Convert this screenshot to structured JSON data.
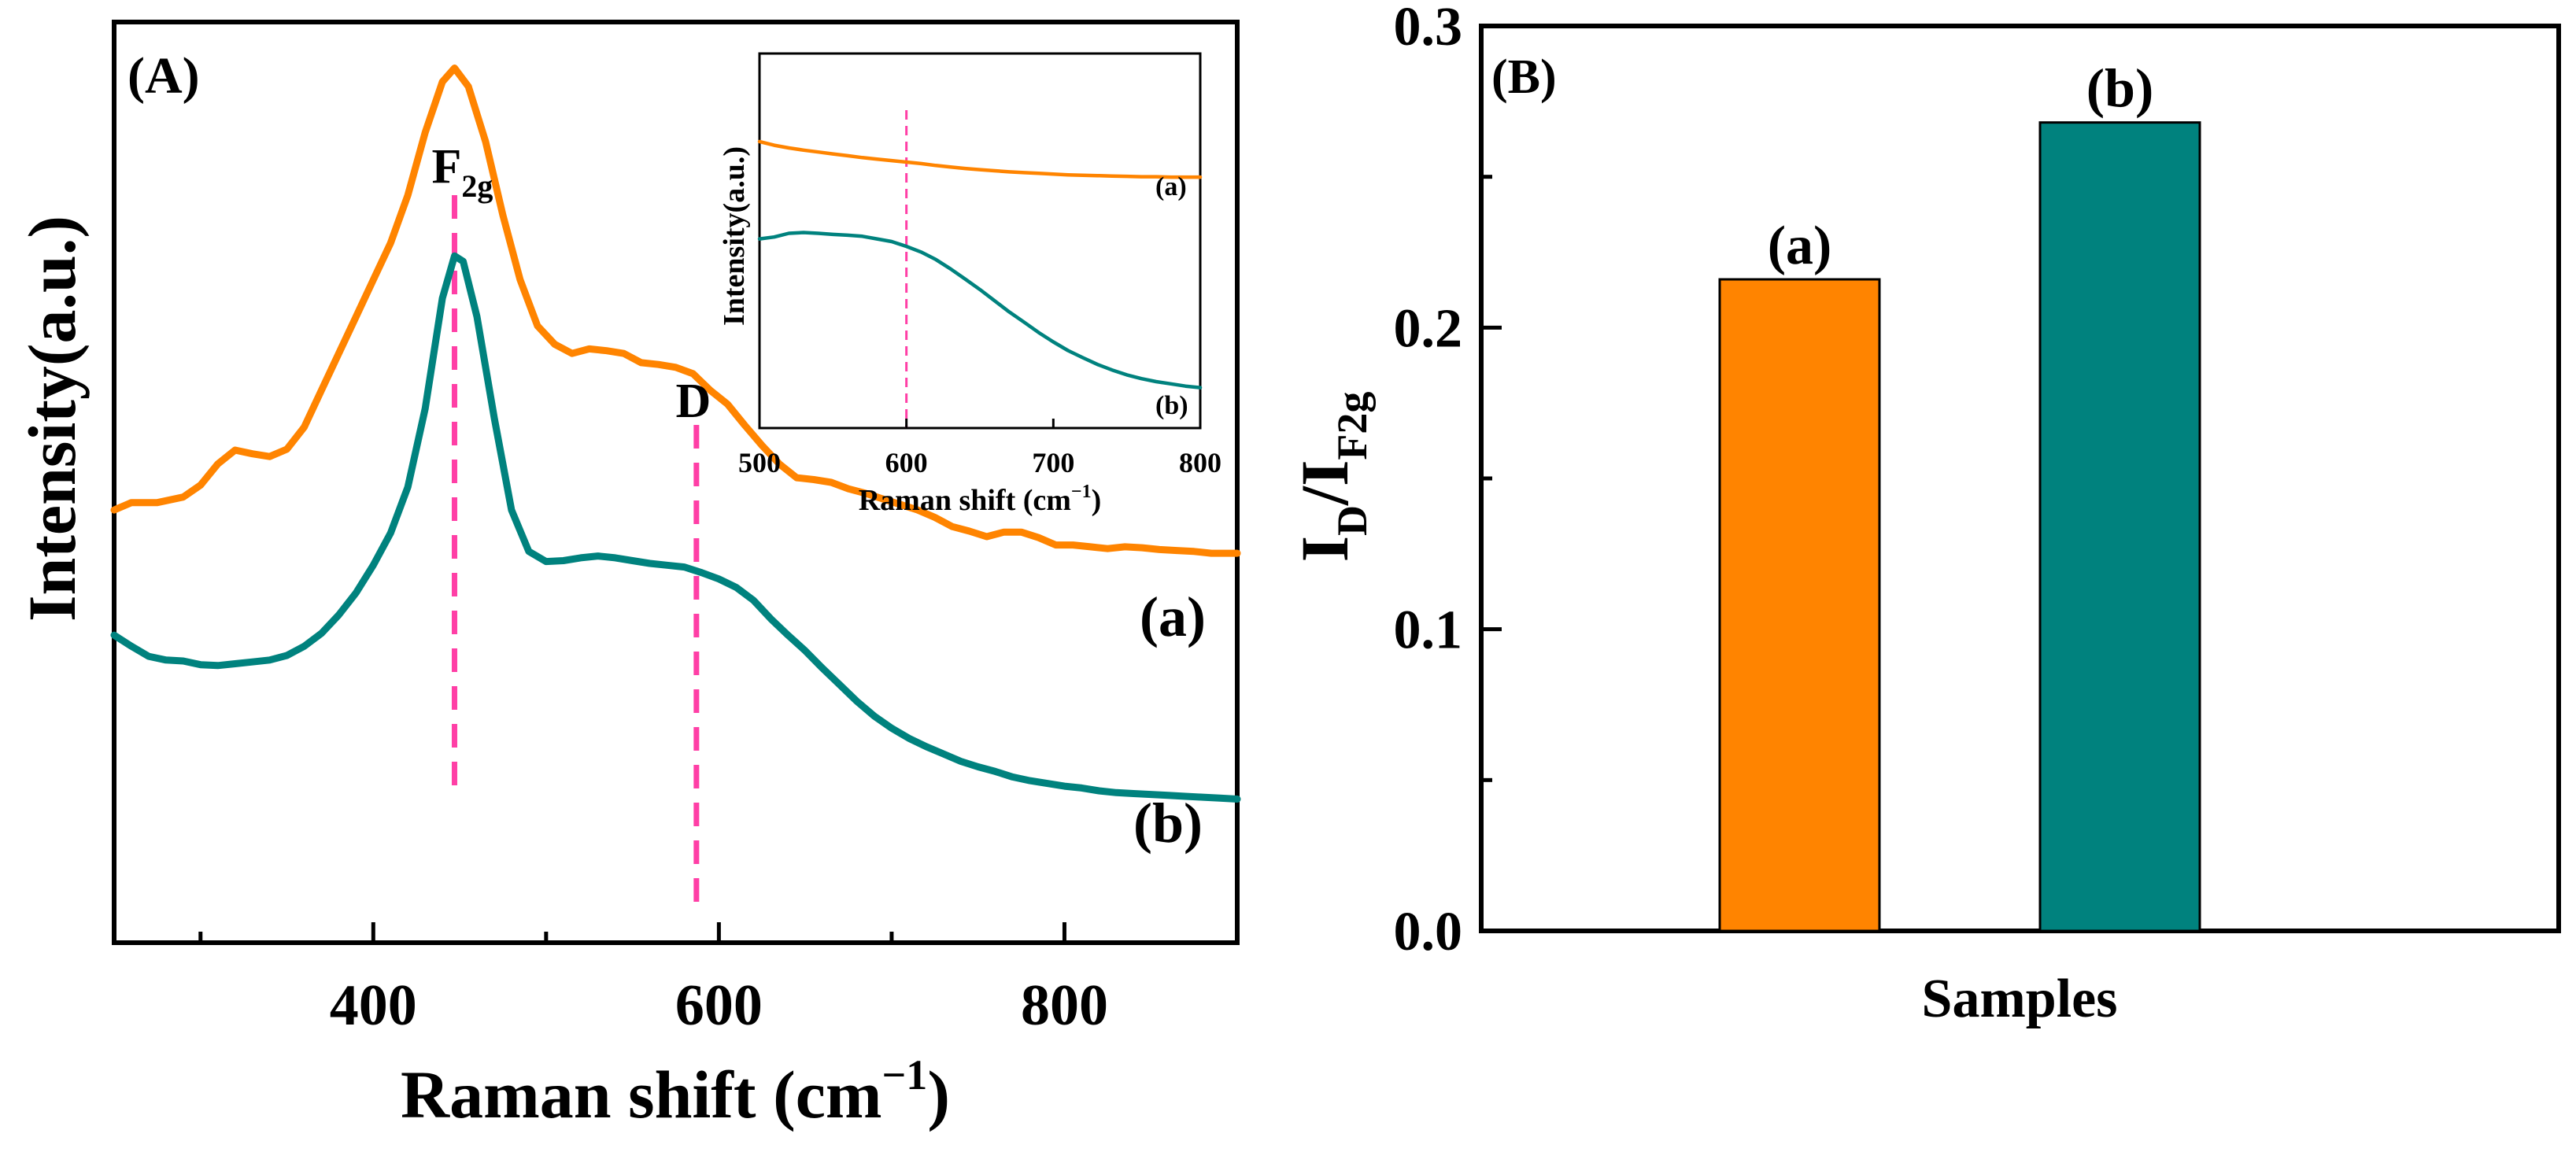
{
  "chart_data": [
    {
      "panel": "(A)",
      "type": "line",
      "xlabel_main": "Raman shift (cm",
      "xlabel_sup": "−1",
      "xlabel_close": ")",
      "ylabel": "Intensity(a.u.)",
      "xlim": [
        250,
        900
      ],
      "ylim": [
        0,
        1
      ],
      "xticks": [
        400,
        600,
        800
      ],
      "grid": false,
      "annotations": [
        {
          "base": "F",
          "sub": "2g",
          "x": 447
        },
        {
          "base": "D",
          "sub": "",
          "x": 587
        }
      ],
      "series": [
        {
          "name": "(a)",
          "color": "#ff8400",
          "points": [
            [
              250,
              0.47
            ],
            [
              260,
              0.478
            ],
            [
              275,
              0.478
            ],
            [
              290,
              0.484
            ],
            [
              300,
              0.497
            ],
            [
              310,
              0.52
            ],
            [
              320,
              0.535
            ],
            [
              330,
              0.531
            ],
            [
              340,
              0.528
            ],
            [
              350,
              0.536
            ],
            [
              360,
              0.56
            ],
            [
              370,
              0.6
            ],
            [
              380,
              0.64
            ],
            [
              390,
              0.68
            ],
            [
              400,
              0.72
            ],
            [
              410,
              0.76
            ],
            [
              420,
              0.812
            ],
            [
              430,
              0.88
            ],
            [
              440,
              0.935
            ],
            [
              447,
              0.95
            ],
            [
              455,
              0.93
            ],
            [
              465,
              0.87
            ],
            [
              475,
              0.79
            ],
            [
              485,
              0.72
            ],
            [
              495,
              0.67
            ],
            [
              505,
              0.65
            ],
            [
              515,
              0.64
            ],
            [
              525,
              0.645
            ],
            [
              535,
              0.643
            ],
            [
              545,
              0.64
            ],
            [
              555,
              0.63
            ],
            [
              565,
              0.628
            ],
            [
              575,
              0.625
            ],
            [
              585,
              0.618
            ],
            [
              595,
              0.6
            ],
            [
              605,
              0.585
            ],
            [
              615,
              0.562
            ],
            [
              625,
              0.54
            ],
            [
              635,
              0.52
            ],
            [
              645,
              0.505
            ],
            [
              655,
              0.503
            ],
            [
              665,
              0.5
            ],
            [
              675,
              0.493
            ],
            [
              685,
              0.488
            ],
            [
              695,
              0.482
            ],
            [
              705,
              0.476
            ],
            [
              715,
              0.47
            ],
            [
              725,
              0.462
            ],
            [
              735,
              0.452
            ],
            [
              745,
              0.447
            ],
            [
              755,
              0.441
            ],
            [
              765,
              0.446
            ],
            [
              775,
              0.446
            ],
            [
              785,
              0.44
            ],
            [
              795,
              0.432
            ],
            [
              805,
              0.432
            ],
            [
              815,
              0.43
            ],
            [
              825,
              0.428
            ],
            [
              835,
              0.43
            ],
            [
              845,
              0.429
            ],
            [
              855,
              0.427
            ],
            [
              865,
              0.426
            ],
            [
              875,
              0.425
            ],
            [
              885,
              0.423
            ],
            [
              900,
              0.423
            ]
          ]
        },
        {
          "name": "(b)",
          "color": "#00827e",
          "points": [
            [
              250,
              0.334
            ],
            [
              260,
              0.322
            ],
            [
              270,
              0.311
            ],
            [
              280,
              0.307
            ],
            [
              290,
              0.306
            ],
            [
              300,
              0.302
            ],
            [
              310,
              0.301
            ],
            [
              320,
              0.303
            ],
            [
              330,
              0.305
            ],
            [
              340,
              0.307
            ],
            [
              350,
              0.312
            ],
            [
              360,
              0.322
            ],
            [
              370,
              0.336
            ],
            [
              380,
              0.356
            ],
            [
              390,
              0.38
            ],
            [
              400,
              0.41
            ],
            [
              410,
              0.445
            ],
            [
              420,
              0.495
            ],
            [
              430,
              0.58
            ],
            [
              440,
              0.7
            ],
            [
              447,
              0.746
            ],
            [
              452,
              0.74
            ],
            [
              460,
              0.68
            ],
            [
              470,
              0.57
            ],
            [
              480,
              0.47
            ],
            [
              490,
              0.425
            ],
            [
              500,
              0.414
            ],
            [
              510,
              0.415
            ],
            [
              520,
              0.418
            ],
            [
              530,
              0.42
            ],
            [
              540,
              0.418
            ],
            [
              550,
              0.415
            ],
            [
              560,
              0.412
            ],
            [
              570,
              0.41
            ],
            [
              580,
              0.408
            ],
            [
              590,
              0.402
            ],
            [
              600,
              0.395
            ],
            [
              610,
              0.386
            ],
            [
              620,
              0.372
            ],
            [
              630,
              0.352
            ],
            [
              640,
              0.334
            ],
            [
              650,
              0.317
            ],
            [
              660,
              0.298
            ],
            [
              670,
              0.28
            ],
            [
              680,
              0.262
            ],
            [
              690,
              0.246
            ],
            [
              700,
              0.233
            ],
            [
              710,
              0.222
            ],
            [
              720,
              0.213
            ],
            [
              730,
              0.205
            ],
            [
              740,
              0.197
            ],
            [
              750,
              0.191
            ],
            [
              760,
              0.186
            ],
            [
              770,
              0.18
            ],
            [
              780,
              0.176
            ],
            [
              790,
              0.173
            ],
            [
              800,
              0.17
            ],
            [
              810,
              0.168
            ],
            [
              820,
              0.165
            ],
            [
              830,
              0.163
            ],
            [
              840,
              0.162
            ],
            [
              850,
              0.161
            ],
            [
              860,
              0.16
            ],
            [
              870,
              0.159
            ],
            [
              880,
              0.158
            ],
            [
              890,
              0.157
            ],
            [
              900,
              0.156
            ]
          ]
        }
      ]
    },
    {
      "panel": "inset",
      "type": "line",
      "xlabel_main": "Raman shift (cm",
      "xlabel_sup": "−1",
      "xlabel_close": ")",
      "ylabel": "Intensity(a.u.)",
      "xlim": [
        500,
        800
      ],
      "ylim": [
        0,
        1
      ],
      "xticks": [
        500,
        600,
        700,
        800
      ],
      "marker_x": 600,
      "grid": false,
      "series": [
        {
          "name": "(a)",
          "color": "#ff8400",
          "points": [
            [
              500,
              0.765
            ],
            [
              510,
              0.755
            ],
            [
              520,
              0.748
            ],
            [
              530,
              0.742
            ],
            [
              540,
              0.737
            ],
            [
              550,
              0.732
            ],
            [
              560,
              0.727
            ],
            [
              570,
              0.722
            ],
            [
              580,
              0.718
            ],
            [
              590,
              0.714
            ],
            [
              600,
              0.71
            ],
            [
              610,
              0.706
            ],
            [
              620,
              0.701
            ],
            [
              630,
              0.697
            ],
            [
              640,
              0.693
            ],
            [
              650,
              0.69
            ],
            [
              660,
              0.687
            ],
            [
              670,
              0.684
            ],
            [
              680,
              0.682
            ],
            [
              690,
              0.68
            ],
            [
              700,
              0.678
            ],
            [
              710,
              0.676
            ],
            [
              720,
              0.675
            ],
            [
              730,
              0.674
            ],
            [
              740,
              0.673
            ],
            [
              750,
              0.672
            ],
            [
              760,
              0.671
            ],
            [
              770,
              0.671
            ],
            [
              780,
              0.67
            ],
            [
              790,
              0.67
            ],
            [
              800,
              0.67
            ]
          ]
        },
        {
          "name": "(b)",
          "color": "#00827e",
          "points": [
            [
              500,
              0.505
            ],
            [
              510,
              0.51
            ],
            [
              520,
              0.52
            ],
            [
              530,
              0.522
            ],
            [
              540,
              0.52
            ],
            [
              550,
              0.517
            ],
            [
              560,
              0.515
            ],
            [
              570,
              0.512
            ],
            [
              580,
              0.505
            ],
            [
              590,
              0.498
            ],
            [
              600,
              0.485
            ],
            [
              610,
              0.47
            ],
            [
              620,
              0.45
            ],
            [
              630,
              0.425
            ],
            [
              640,
              0.398
            ],
            [
              650,
              0.37
            ],
            [
              660,
              0.34
            ],
            [
              670,
              0.31
            ],
            [
              680,
              0.283
            ],
            [
              690,
              0.255
            ],
            [
              700,
              0.23
            ],
            [
              710,
              0.207
            ],
            [
              720,
              0.188
            ],
            [
              730,
              0.17
            ],
            [
              740,
              0.155
            ],
            [
              750,
              0.142
            ],
            [
              760,
              0.132
            ],
            [
              770,
              0.124
            ],
            [
              780,
              0.118
            ],
            [
              790,
              0.112
            ],
            [
              800,
              0.108
            ]
          ]
        }
      ]
    },
    {
      "panel": "(B)",
      "type": "bar",
      "xlabel": "Samples",
      "ylabel_I": "I",
      "ylabel_sub1": "D",
      "ylabel_slash": "/I",
      "ylabel_sub2": "F2g",
      "ylim": [
        0,
        0.3
      ],
      "yticks": [
        "0.0",
        "0.1",
        "0.2",
        "0.3"
      ],
      "categories": [
        "(a)",
        "(b)"
      ],
      "values": [
        0.216,
        0.268
      ],
      "colors": [
        "#ff8400",
        "#00827e"
      ],
      "grid": false
    }
  ]
}
